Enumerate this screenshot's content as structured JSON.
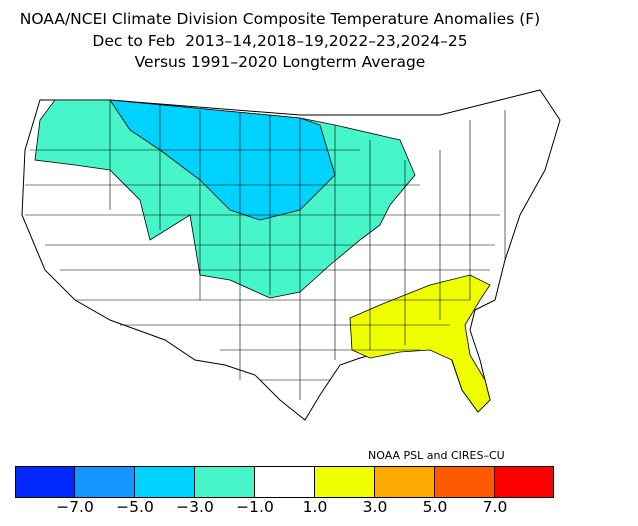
{
  "title": {
    "line1": "NOAA/NCEI Climate Division Composite Temperature Anomalies (F)",
    "line2": "Dec to Feb  2013–14,2018–19,2022–23,2024–25",
    "line3": "Versus 1991–2020 Longterm Average"
  },
  "credit": "NOAA PSL and CIRES–CU",
  "legend": {
    "bins": [
      {
        "color": "#0028ff"
      },
      {
        "color": "#1496ff"
      },
      {
        "color": "#00d2ff"
      },
      {
        "color": "#46f5c8"
      },
      {
        "color": "#ffffff"
      },
      {
        "color": "#f0ff00"
      },
      {
        "color": "#ffaa00"
      },
      {
        "color": "#ff5a00"
      },
      {
        "color": "#ff0000"
      }
    ],
    "ticks": [
      "−7.0",
      "−5.0",
      "−3.0",
      "−1.0",
      "1.0",
      "3.0",
      "5.0",
      "7.0"
    ]
  },
  "map": {
    "regions": [
      {
        "name": "northern-rockies-plains",
        "anomaly_bin": "-5.0 to -3.0",
        "color": "#00d2ff"
      },
      {
        "name": "pacific-northwest-north-central",
        "anomaly_bin": "-3.0 to -1.0",
        "color": "#46f5c8"
      },
      {
        "name": "southeast",
        "anomaly_bin": "1.0 to 3.0",
        "color": "#f0ff00"
      },
      {
        "name": "remainder",
        "anomaly_bin": "-1.0 to 1.0",
        "color": "#ffffff"
      }
    ]
  }
}
